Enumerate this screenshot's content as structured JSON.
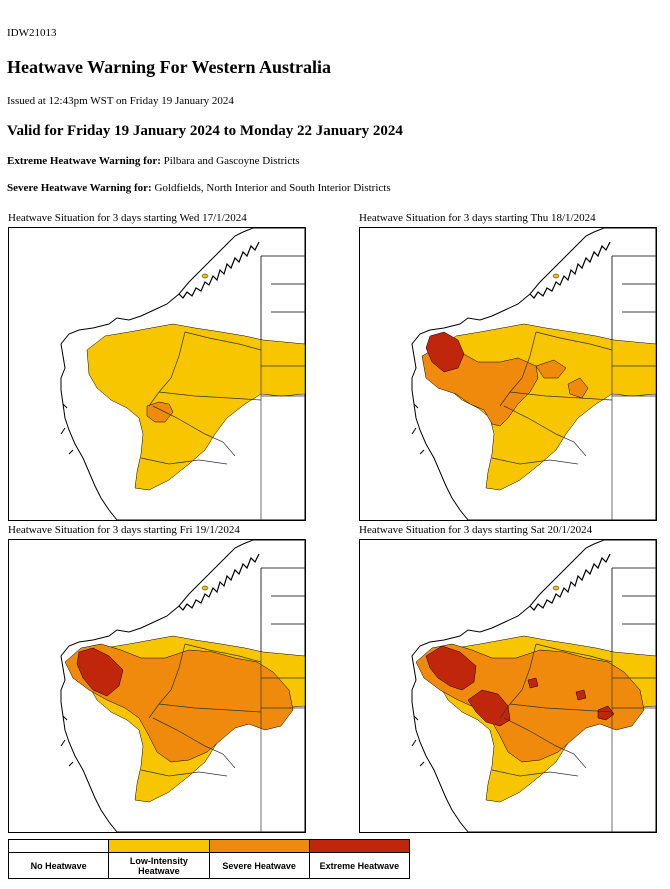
{
  "product_id": "IDW21013",
  "title": "Heatwave Warning For Western Australia",
  "issued": "Issued at 12:43pm WST on Friday 19 January 2024",
  "valid": "Valid for Friday 19 January 2024 to Monday 22 January 2024",
  "extreme": {
    "label": "Extreme Heatwave Warning for:",
    "areas": " Pilbara and Gascoyne Districts"
  },
  "severe": {
    "label": "Severe Heatwave Warning for:",
    "areas": " Goldfields, North Interior and South Interior Districts"
  },
  "maps": [
    {
      "title": "Heatwave Situation for 3 days starting Wed 17/1/2024",
      "low": true,
      "severe": "small",
      "extreme": "none"
    },
    {
      "title": "Heatwave Situation for 3 days starting Thu 18/1/2024",
      "low": true,
      "severe": "medium",
      "extreme": "small"
    },
    {
      "title": "Heatwave Situation for 3 days starting Fri 19/1/2024",
      "low": true,
      "severe": "large",
      "extreme": "medium"
    },
    {
      "title": "Heatwave Situation for 3 days starting Sat 20/1/2024",
      "low": true,
      "severe": "large",
      "extreme": "large"
    }
  ],
  "legend": [
    {
      "label": "No Heatwave",
      "color": "#ffffff"
    },
    {
      "label": "Low-Intensity Heatwave",
      "color": "#f7c600"
    },
    {
      "label": "Severe Heatwave",
      "color": "#f08a0c"
    },
    {
      "label": "Extreme Heatwave",
      "color": "#c0260b"
    }
  ]
}
